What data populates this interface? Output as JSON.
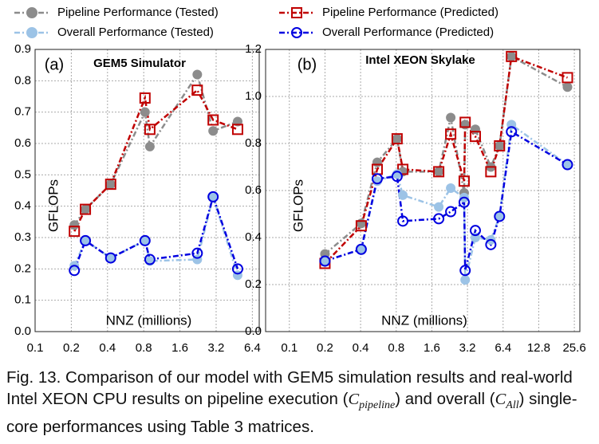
{
  "chart_data": [
    {
      "type": "line",
      "panel_label": "(a)",
      "title": "GEM5 Simulator",
      "xlabel": "NNZ (millions)",
      "ylabel": "GFLOPs",
      "xscale": "log",
      "grid": true,
      "x": [
        0.212,
        0.262,
        0.425,
        0.82,
        0.9,
        2.23,
        3.02,
        4.83
      ],
      "xlim": [
        0.1,
        7.3
      ],
      "xticks": [
        0.1,
        0.2,
        0.4,
        0.8,
        1.6,
        3.2,
        6.4
      ],
      "ylim": [
        0,
        0.9
      ],
      "yticks": [
        {
          "value": 0,
          "label": "0.0"
        },
        0.1,
        0.2,
        0.3,
        0.4,
        0.5,
        0.6,
        0.7,
        0.8,
        0.9
      ],
      "series": [
        {
          "name": "Pipeline Performance (Tested)",
          "color": "#8c8c8c",
          "marker": "circle",
          "filled": true,
          "values": [
            0.34,
            0.39,
            0.47,
            0.7,
            0.59,
            0.82,
            0.64,
            0.67
          ]
        },
        {
          "name": "Pipeline Performance (Predicted)",
          "color": "#c00000",
          "marker": "square",
          "filled": false,
          "values": [
            0.32,
            0.39,
            0.47,
            0.745,
            0.645,
            0.77,
            0.675,
            0.645
          ]
        },
        {
          "name": "Overall Performance (Tested)",
          "color": "#9cc3e6",
          "marker": "circle",
          "filled": true,
          "values": [
            0.21,
            0.29,
            0.235,
            0.29,
            0.225,
            0.23,
            0.43,
            0.18
          ]
        },
        {
          "name": "Overall Performance (Predicted)",
          "color": "#0000e0",
          "marker": "circle",
          "filled": false,
          "values": [
            0.195,
            0.29,
            0.235,
            0.29,
            0.23,
            0.25,
            0.43,
            0.2
          ]
        }
      ]
    },
    {
      "type": "line",
      "panel_label": "(b)",
      "title": "Intel XEON Skylake",
      "xlabel": "NNZ (millions)",
      "ylabel": "GFLOPs",
      "xscale": "log",
      "grid": true,
      "x": [
        0.2,
        0.405,
        0.553,
        0.814,
        0.91,
        1.83,
        2.31,
        3.0,
        3.06,
        3.73,
        5.04,
        5.97,
        7.53,
        22.4
      ],
      "xlim": [
        0.063,
        28.5
      ],
      "xticks": [
        0.1,
        0.2,
        0.4,
        0.8,
        1.6,
        3.2,
        6.4,
        12.8,
        25.6
      ],
      "ylim": [
        0,
        1.2
      ],
      "yticks": [
        {
          "value": 0,
          "label": "0.0"
        },
        0.2,
        0.4,
        0.6,
        0.8,
        {
          "value": 1,
          "label": "1.0"
        },
        1.2
      ],
      "series": [
        {
          "name": "Pipeline Performance (Tested)",
          "color": "#8c8c8c",
          "marker": "circle",
          "filled": true,
          "values": [
            0.33,
            0.46,
            0.72,
            0.82,
            0.68,
            0.68,
            0.91,
            0.59,
            0.88,
            0.86,
            0.7,
            0.79,
            1.17,
            1.04
          ]
        },
        {
          "name": "Pipeline Performance (Predicted)",
          "color": "#c00000",
          "marker": "square",
          "filled": false,
          "values": [
            0.29,
            0.45,
            0.69,
            0.82,
            0.69,
            0.68,
            0.84,
            0.64,
            0.89,
            0.83,
            0.68,
            0.79,
            1.17,
            1.08
          ]
        },
        {
          "name": "Overall Performance (Tested)",
          "color": "#9cc3e6",
          "marker": "circle",
          "filled": true,
          "values": [
            0.3,
            0.35,
            0.64,
            0.67,
            0.58,
            0.53,
            0.61,
            0.57,
            0.22,
            0.4,
            0.39,
            0.49,
            0.88,
            0.71
          ]
        },
        {
          "name": "Overall Performance (Predicted)",
          "color": "#0000e0",
          "marker": "circle",
          "filled": false,
          "values": [
            0.3,
            0.35,
            0.65,
            0.66,
            0.47,
            0.48,
            0.51,
            0.55,
            0.26,
            0.43,
            0.37,
            0.49,
            0.85,
            0.71
          ]
        }
      ]
    }
  ],
  "caption": [
    "Fig. 13. Comparison of our model with GEM5 simulation results and real-world Intel XEON CPU results on pipeline execution (",
    "C",
    "pipeline",
    ") and overall (",
    "C",
    "All",
    ") single-core performances using Table 3 matrices."
  ]
}
